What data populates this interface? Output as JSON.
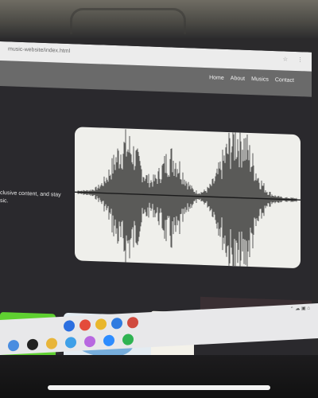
{
  "browser": {
    "url": "music-website/index.html"
  },
  "nav": {
    "items": [
      "Home",
      "About",
      "Musics",
      "Contact"
    ]
  },
  "hero": {
    "line1": "clusive content, and stay",
    "line2": "sic."
  },
  "colors": {
    "page_bg": "#2a292d",
    "header_bg": "#6a6a6a",
    "card_bg": "#efefeb",
    "waveform": "#1b1b1b",
    "green_card": "#5fd031"
  },
  "taskbar": {
    "pinned_icons": [
      "copilot-icon",
      "dell-icon",
      "files-icon",
      "store-icon",
      "app-icon",
      "zoom-icon",
      "whatsapp-icon",
      "chrome-icon",
      "chrome-icon",
      "vscode-icon",
      "chrome-icon"
    ]
  }
}
